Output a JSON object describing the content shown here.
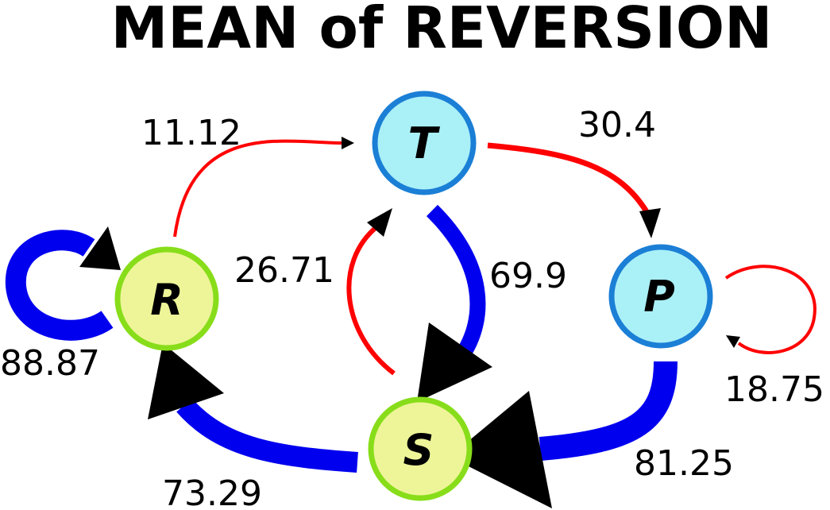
{
  "title": "MEAN of REVERSION",
  "colors": {
    "strong_edge": "#0000ee",
    "weak_edge": "#ff0000",
    "node_blue_fill": "#aaf0f7",
    "node_blue_stroke": "#1b7fd6",
    "node_green_fill": "#eef598",
    "node_green_stroke": "#88dd1a",
    "arrowhead": "#000000"
  },
  "nodes": [
    {
      "id": "T",
      "label": "T"
    },
    {
      "id": "P",
      "label": "P"
    },
    {
      "id": "R",
      "label": "R"
    },
    {
      "id": "S",
      "label": "S"
    }
  ],
  "edges": [
    {
      "from": "R",
      "to": "T",
      "label": "11.12",
      "color": "red"
    },
    {
      "from": "T",
      "to": "P",
      "label": "30.4",
      "color": "red"
    },
    {
      "from": "S",
      "to": "T",
      "label": "26.71",
      "color": "red"
    },
    {
      "from": "T",
      "to": "S",
      "label": "69.9",
      "color": "blue"
    },
    {
      "from": "P",
      "to": "P",
      "label": "18.75",
      "color": "red"
    },
    {
      "from": "P",
      "to": "S",
      "label": "81.25",
      "color": "blue"
    },
    {
      "from": "S",
      "to": "R",
      "label": "73.29",
      "color": "blue"
    },
    {
      "from": "R",
      "to": "R",
      "label": "88.87",
      "color": "blue"
    }
  ]
}
